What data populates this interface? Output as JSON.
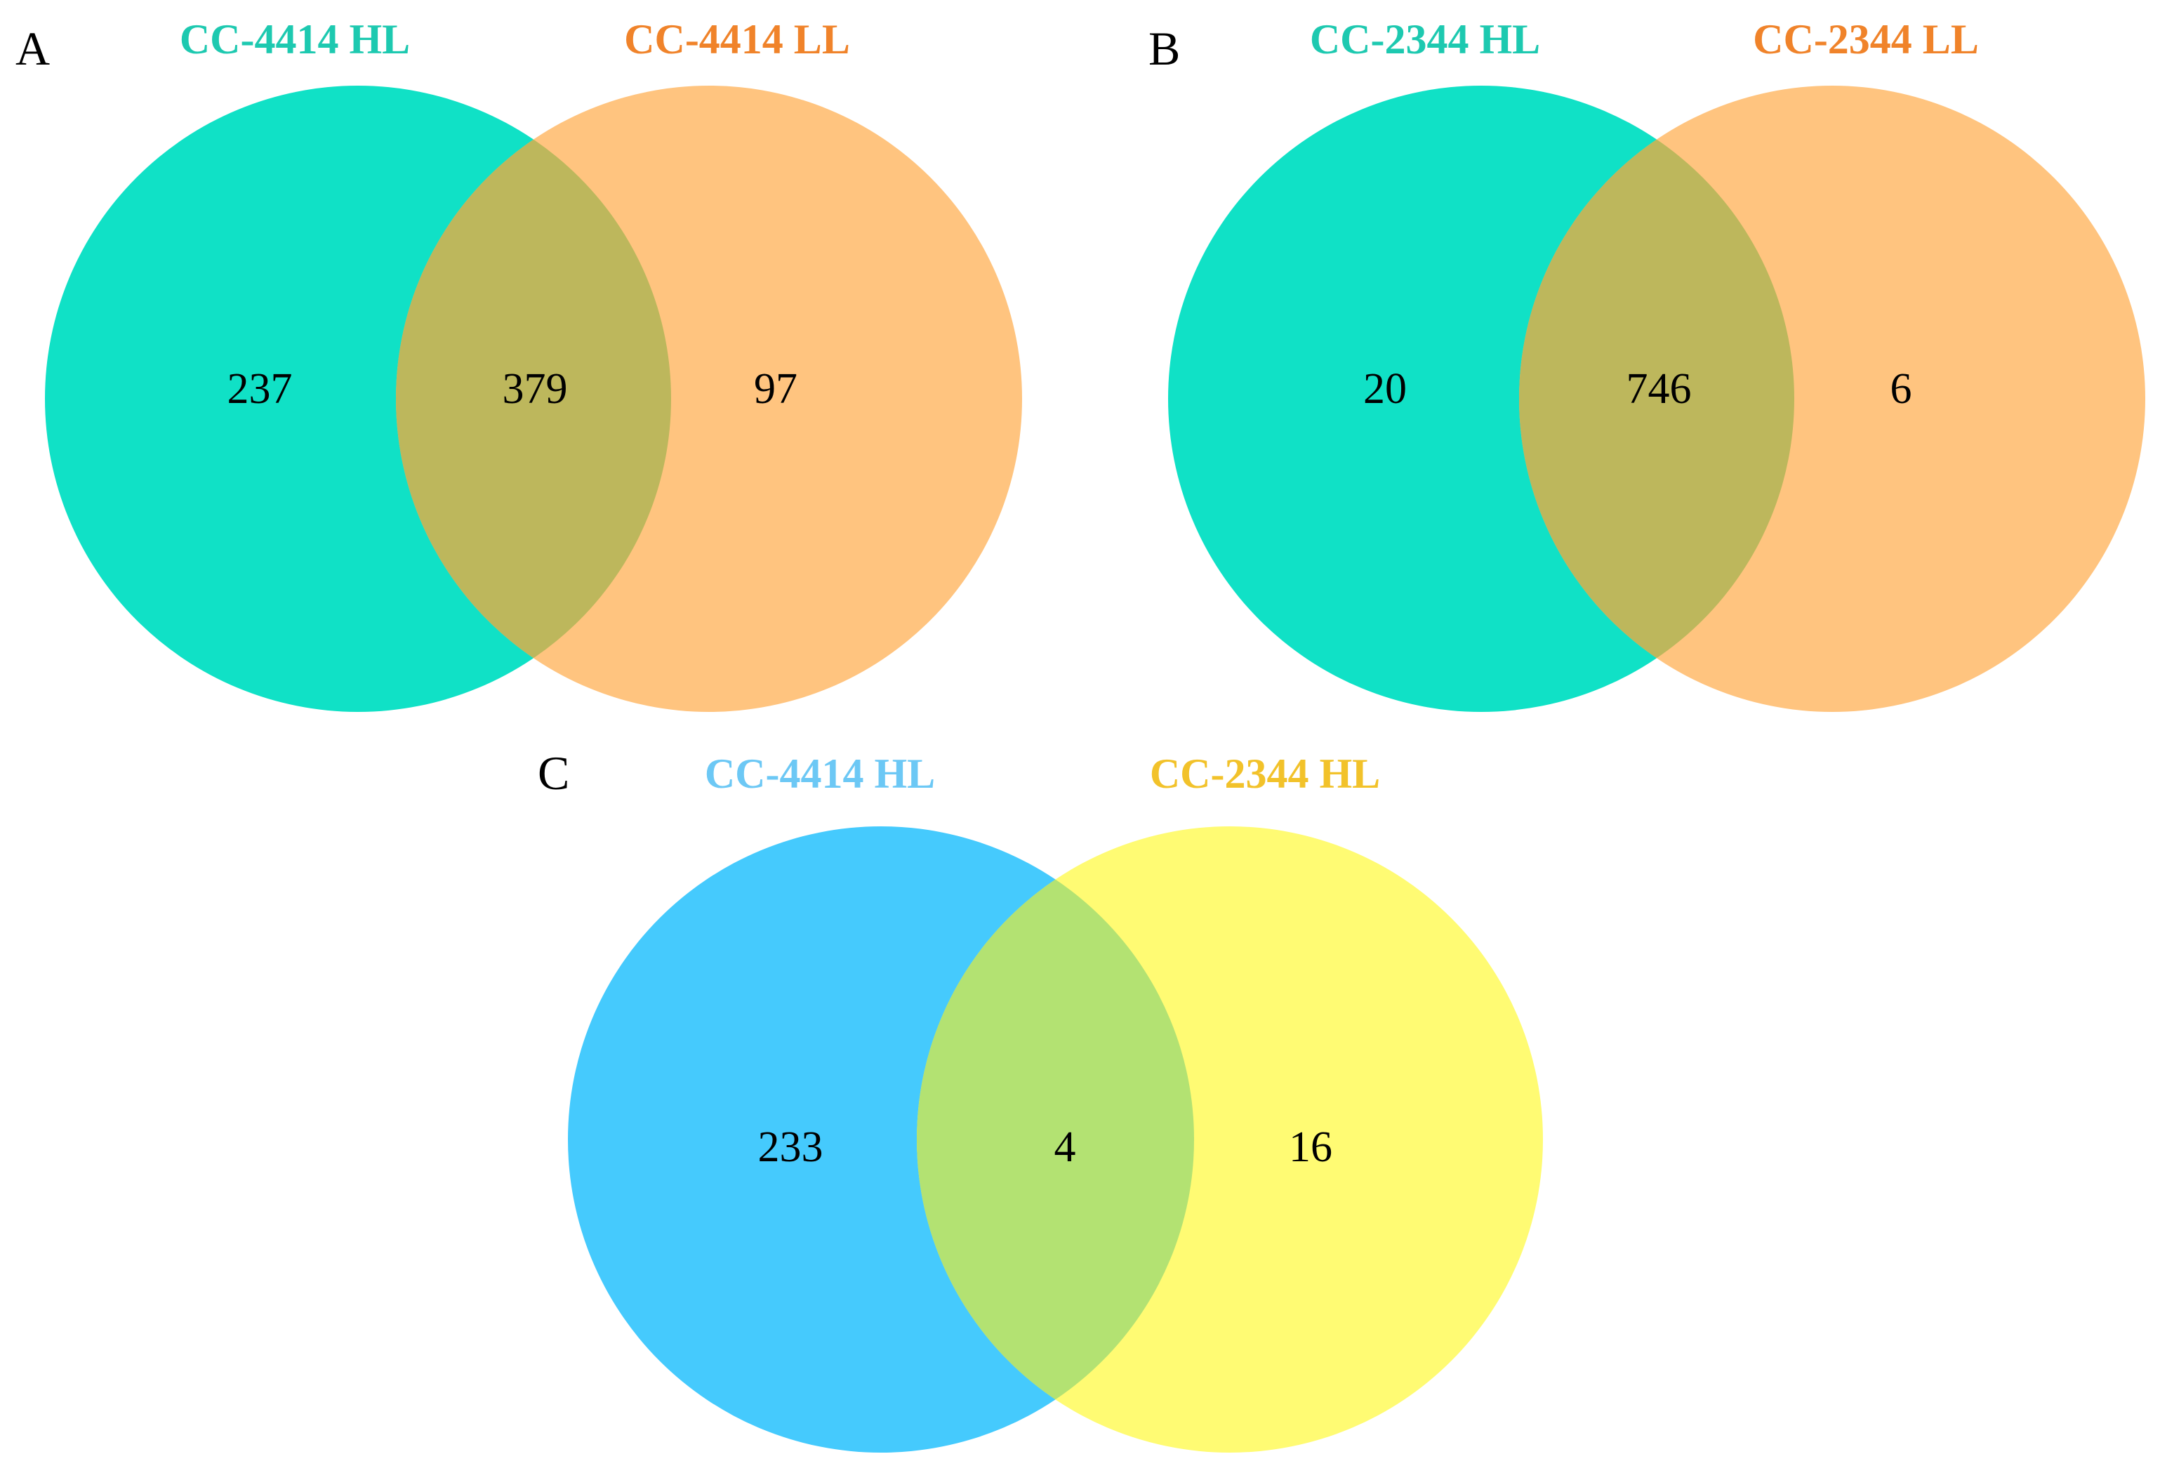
{
  "panels": [
    {
      "label": "A",
      "left": {
        "name": "CC-4414 HL",
        "color": "#10E1C6",
        "label_color": "#1DC9B0",
        "count": "237"
      },
      "right": {
        "name": "CC-4414 LL",
        "color": "#FFC47F",
        "label_color": "#F0832A",
        "count": "97"
      },
      "overlap": {
        "color": "#BDB75C",
        "count": "379"
      }
    },
    {
      "label": "B",
      "left": {
        "name": "CC-2344 HL",
        "color": "#10E1C6",
        "label_color": "#1DC9B0",
        "count": "20"
      },
      "right": {
        "name": "CC-2344 LL",
        "color": "#FFC47F",
        "label_color": "#F0832A",
        "count": "6"
      },
      "overlap": {
        "color": "#BDB75C",
        "count": "746"
      }
    },
    {
      "label": "C",
      "left": {
        "name": "CC-4414 HL",
        "color": "#45CAFD",
        "label_color": "#6CC8F5",
        "count": "233"
      },
      "right": {
        "name": "CC-2344 HL",
        "color": "#FFFB73",
        "label_color": "#F2C22A",
        "count": "16"
      },
      "overlap": {
        "color": "#B3E272",
        "count": "4"
      }
    }
  ]
}
